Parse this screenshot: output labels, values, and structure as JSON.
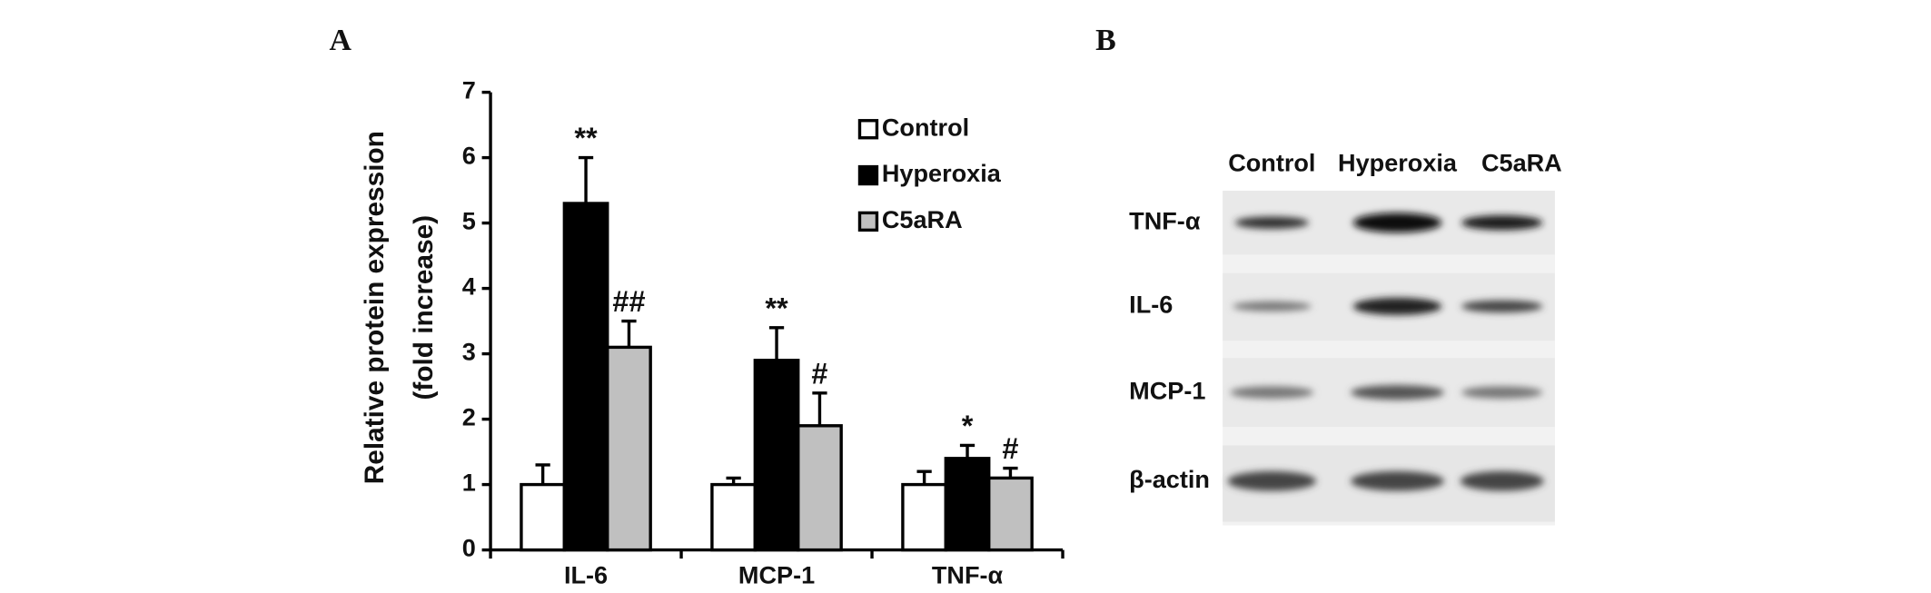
{
  "panel_labels": [
    "A",
    "B"
  ],
  "chart_data": {
    "type": "bar",
    "y_label": [
      "Relative protein expression",
      "(fold increase)"
    ],
    "categories": [
      "IL-6",
      "MCP-1",
      "TNF-α"
    ],
    "series": [
      {
        "name": "Control",
        "color": "#ffffff",
        "values": [
          1,
          1,
          1
        ],
        "errors": [
          0.3,
          0.1,
          0.2
        ],
        "significance": [
          null,
          null,
          null
        ]
      },
      {
        "name": "Hyperoxia",
        "color": "#000000",
        "values": [
          5.3,
          2.9,
          1.4
        ],
        "errors": [
          0.7,
          0.5,
          0.2
        ],
        "significance": [
          "**",
          "**",
          "*"
        ]
      },
      {
        "name": "C5aRA",
        "color": "#c0c0c0",
        "values": [
          3.1,
          1.9,
          1.1
        ],
        "errors": [
          0.4,
          0.5,
          0.15
        ],
        "significance": [
          "##",
          "#",
          "#"
        ]
      }
    ],
    "ylim": [
      0,
      7
    ],
    "yticks": [
      0,
      1,
      2,
      3,
      4,
      5,
      6,
      7
    ],
    "legend": "upper right"
  },
  "blot": {
    "columns": [
      "Control",
      "Hyperoxia",
      "C5aRA"
    ],
    "rows": [
      "TNF-α",
      "IL-6",
      "MCP-1",
      "β-actin"
    ]
  }
}
